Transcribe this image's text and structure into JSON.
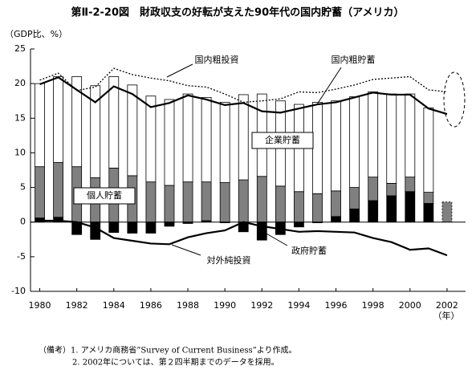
{
  "chart_data": {
    "type": "stacked-bar-line",
    "title": "第Ⅱ-2-20図　財政収支の好転が支えた90年代の国内貯蓄（アメリカ）",
    "y_label": "（GDP比、%）",
    "x_label": "（年）",
    "x": [
      1980,
      1981,
      1982,
      1983,
      1984,
      1985,
      1986,
      1987,
      1988,
      1989,
      1990,
      1991,
      1992,
      1993,
      1994,
      1995,
      1996,
      1997,
      1998,
      1999,
      2000,
      2001,
      2002
    ],
    "xlim": [
      1979.5,
      2003
    ],
    "xticks": [
      1980,
      1982,
      1984,
      1986,
      1988,
      1990,
      1992,
      1994,
      1996,
      1998,
      2000,
      2002
    ],
    "ylim": [
      -10,
      25
    ],
    "yticks": [
      -10,
      -5,
      0,
      5,
      10,
      15,
      20,
      25
    ],
    "bar_series": [
      {
        "name": "政府貯蓄",
        "color": "#000000",
        "values": [
          0.6,
          0.7,
          -1.8,
          -2.5,
          -1.5,
          -1.6,
          -1.6,
          -0.6,
          -0.2,
          0.2,
          -0.1,
          -1.4,
          -2.6,
          -1.8,
          -0.7,
          -0.1,
          0.8,
          1.9,
          3.1,
          3.8,
          4.4,
          2.7,
          null
        ]
      },
      {
        "name": "個人貯蓄",
        "color": "#808080",
        "values": [
          7.4,
          7.9,
          8.0,
          6.4,
          7.8,
          6.7,
          5.8,
          5.3,
          5.8,
          5.6,
          5.7,
          6.1,
          6.6,
          5.2,
          4.4,
          4.1,
          3.7,
          3.1,
          3.4,
          1.8,
          2.1,
          1.6,
          2.9
        ]
      },
      {
        "name": "企業貯蓄",
        "color": "#ffffff",
        "values": [
          12.0,
          12.4,
          13.0,
          13.3,
          13.2,
          13.1,
          12.4,
          12.4,
          12.7,
          12.2,
          11.6,
          12.3,
          11.9,
          12.3,
          12.6,
          13.2,
          13.0,
          13.1,
          12.3,
          12.9,
          12.0,
          12.2,
          null
        ]
      }
    ],
    "line_series": [
      {
        "name": "国内粗投資",
        "color": "#000000",
        "style": "dotted",
        "values": [
          20.5,
          21.5,
          19.0,
          19.5,
          22.2,
          21.3,
          20.8,
          20.4,
          19.7,
          19.5,
          18.5,
          17.3,
          17.5,
          17.8,
          18.8,
          18.7,
          19.2,
          19.8,
          20.6,
          20.8,
          21.0,
          19.1,
          18.8
        ]
      },
      {
        "name": "国内粗貯蓄",
        "color": "#000000",
        "style": "solid",
        "values": [
          19.9,
          20.9,
          19.1,
          17.3,
          19.6,
          18.5,
          16.6,
          17.2,
          18.3,
          17.7,
          16.9,
          17.2,
          16.0,
          15.8,
          16.4,
          17.0,
          17.3,
          18.0,
          18.7,
          18.4,
          18.4,
          16.4,
          15.6
        ]
      },
      {
        "name": "対外純投資",
        "color": "#000000",
        "style": "solid",
        "values": [
          0.2,
          0.2,
          0.0,
          -0.8,
          -2.3,
          -2.7,
          -3.1,
          -3.2,
          -2.2,
          -1.6,
          -1.2,
          0.0,
          -0.6,
          -1.0,
          -1.4,
          -1.3,
          -1.4,
          -1.5,
          -2.3,
          -2.9,
          -4.0,
          -3.8,
          -4.8
        ]
      }
    ],
    "notes": [
      "（備考）1. アメリカ商務省”Survey of Current Business”より作成。",
      "2. 2002年については、第２四半期までのデータを採用。"
    ]
  }
}
